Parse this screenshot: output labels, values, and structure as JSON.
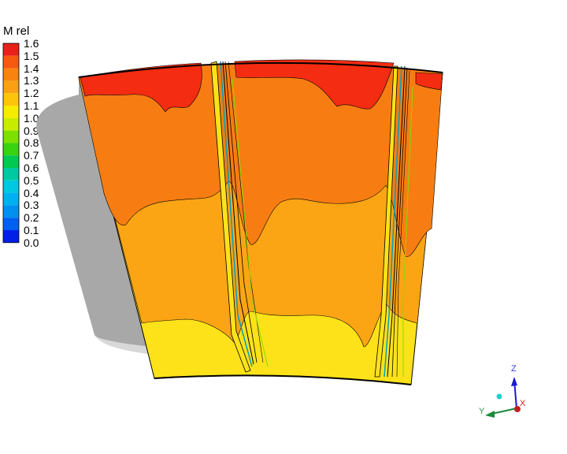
{
  "legend": {
    "title": "M rel",
    "labels": [
      "1.6",
      "1.5",
      "1.4",
      "1.3",
      "1.2",
      "1.1",
      "1.0",
      "0.9",
      "0.8",
      "0.7",
      "0.6",
      "0.5",
      "0.4",
      "0.3",
      "0.2",
      "0.1",
      "0.0"
    ],
    "colors": [
      "#e8201a",
      "#f55a10",
      "#f88310",
      "#fba015",
      "#fdc40c",
      "#f6ec00",
      "#c8ec00",
      "#7ee000",
      "#38d410",
      "#00c850",
      "#00c8a0",
      "#00c8e0",
      "#00b0f0",
      "#0090f0",
      "#0060f0",
      "#0020e8"
    ]
  },
  "field_colors": {
    "red": "#f32c12",
    "orange_dark": "#f77d12",
    "orange": "#fba515",
    "yellow": "#fde21a",
    "hub_shadow": "#a8a8a8"
  },
  "triad": {
    "z_label": "Z",
    "y_label": "Y",
    "x_label": "X"
  }
}
